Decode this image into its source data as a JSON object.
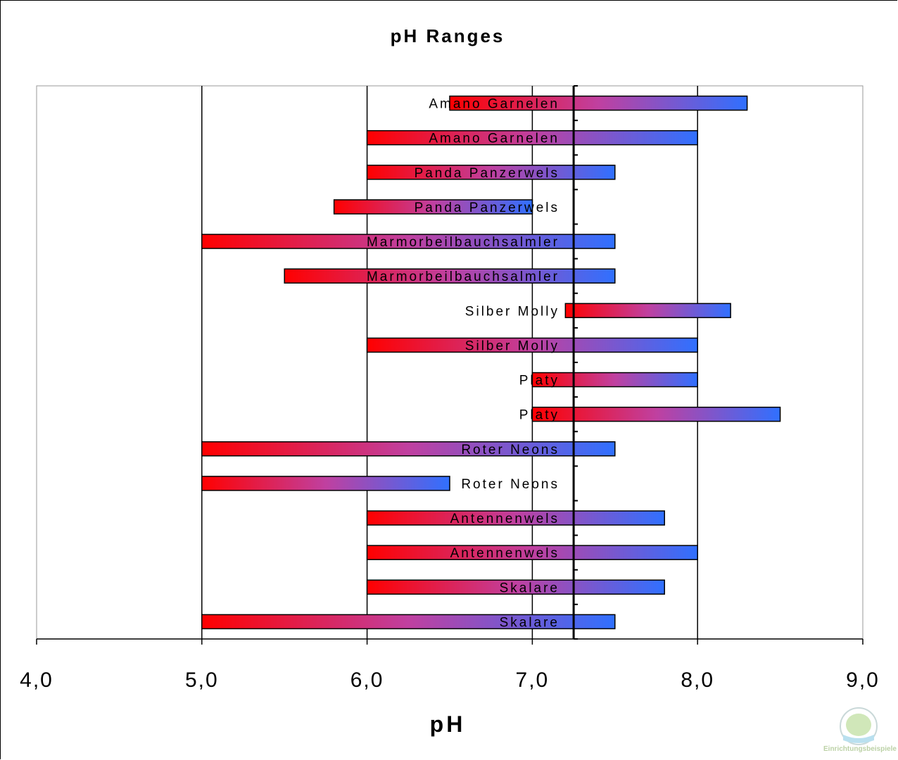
{
  "chart_data": {
    "type": "bar",
    "orientation": "horizontal",
    "title": "pH Ranges",
    "xlabel": "pH",
    "ylabel": "",
    "xlim": [
      4.0,
      9.0
    ],
    "xticks": [
      "4,0",
      "5,0",
      "6,0",
      "7,0",
      "8,0",
      "9,0"
    ],
    "xtick_values": [
      4,
      5,
      6,
      7,
      8,
      9
    ],
    "grid": "vertical major gridlines",
    "reference_line": 7.25,
    "bars": [
      {
        "label": "Amano Garnelen",
        "start": 6.5,
        "end": 8.3
      },
      {
        "label": "Amano Garnelen",
        "start": 6.0,
        "end": 8.0
      },
      {
        "label": "Panda Panzerwels",
        "start": 6.0,
        "end": 7.5
      },
      {
        "label": "Panda Panzerwels",
        "start": 5.8,
        "end": 7.0
      },
      {
        "label": "Marmorbeilbauchsalmler",
        "start": 5.0,
        "end": 7.5
      },
      {
        "label": "Marmorbeilbauchsalmler",
        "start": 5.5,
        "end": 7.5
      },
      {
        "label": "Silber Molly",
        "start": 7.2,
        "end": 8.2
      },
      {
        "label": "Silber Molly",
        "start": 6.0,
        "end": 8.0
      },
      {
        "label": "Platy",
        "start": 7.0,
        "end": 8.0
      },
      {
        "label": "Platy",
        "start": 7.0,
        "end": 8.5
      },
      {
        "label": "Roter Neons",
        "start": 5.0,
        "end": 7.5
      },
      {
        "label": "Roter Neons",
        "start": 5.0,
        "end": 6.5
      },
      {
        "label": "Antennenwels",
        "start": 6.0,
        "end": 7.8
      },
      {
        "label": "Antennenwels",
        "start": 6.0,
        "end": 8.0
      },
      {
        "label": "Skalare",
        "start": 6.0,
        "end": 7.8
      },
      {
        "label": "Skalare",
        "start": 5.0,
        "end": 7.5
      }
    ],
    "colors": {
      "gradient_start": "#ff0000",
      "gradient_mid": "#c040a0",
      "gradient_end": "#3070ff"
    }
  },
  "watermark": {
    "text": "Einrichtungsbeispiele"
  }
}
